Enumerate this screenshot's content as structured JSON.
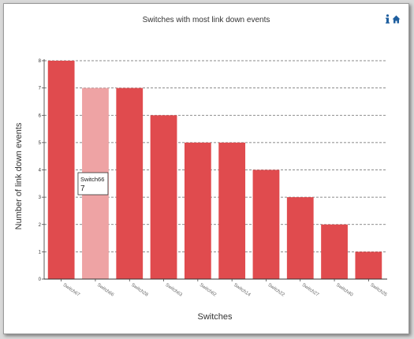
{
  "chart_data": {
    "type": "bar",
    "title": "Switches with most link down events",
    "xlabel": "Switches",
    "ylabel": "Number of link down events",
    "categories": [
      "Switch67",
      "Switch66",
      "Switch28",
      "Switch63",
      "Switch62",
      "Switch14",
      "Switch22",
      "Switch27",
      "Switch40",
      "Switch25"
    ],
    "values": [
      8,
      7,
      7,
      6,
      5,
      5,
      4,
      3,
      2,
      1
    ],
    "ylim": [
      0,
      8
    ],
    "yticks": [
      0,
      1,
      2,
      3,
      4,
      5,
      6,
      7,
      8
    ],
    "grid": true,
    "bar_color": "#e04b4e",
    "highlight_color": "#eea3a4",
    "highlighted_index": 1,
    "tooltip": {
      "category": "Switch66",
      "value": "7"
    }
  },
  "toolbar": {
    "info_icon": "info-icon",
    "home_icon": "home-icon",
    "icon_color": "#1f5f9f"
  }
}
